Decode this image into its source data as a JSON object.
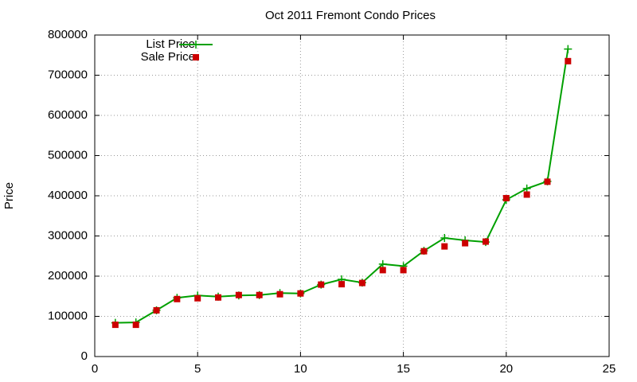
{
  "chart_data": {
    "type": "line",
    "title": "Oct 2011 Fremont Condo Prices",
    "y_label": "Price",
    "x": [
      1,
      2,
      3,
      4,
      5,
      6,
      7,
      8,
      9,
      10,
      11,
      12,
      13,
      14,
      15,
      16,
      17,
      18,
      19,
      20,
      21,
      22,
      23
    ],
    "series": [
      {
        "name": "List Price",
        "color": "#00a000",
        "style": "linespoints",
        "values": [
          84000,
          85000,
          115000,
          146000,
          152000,
          149000,
          152000,
          153000,
          158000,
          157000,
          179000,
          192000,
          184000,
          230000,
          225000,
          263000,
          295000,
          289000,
          285000,
          390000,
          418000,
          436000,
          765000
        ]
      },
      {
        "name": "Sale Price",
        "color": "#cc0000",
        "style": "points",
        "values": [
          79000,
          79000,
          115000,
          143000,
          145000,
          147000,
          153000,
          153000,
          155000,
          157000,
          179000,
          180000,
          183000,
          215000,
          215000,
          262000,
          274000,
          282000,
          286000,
          394000,
          403000,
          435000,
          735000
        ]
      }
    ],
    "xlim": [
      0,
      25
    ],
    "xticks": [
      0,
      5,
      10,
      15,
      20,
      25
    ],
    "ylim": [
      0,
      800000
    ],
    "yticks": [
      0,
      100000,
      200000,
      300000,
      400000,
      500000,
      600000,
      700000,
      800000
    ],
    "grid": true,
    "legend": "top-left"
  }
}
